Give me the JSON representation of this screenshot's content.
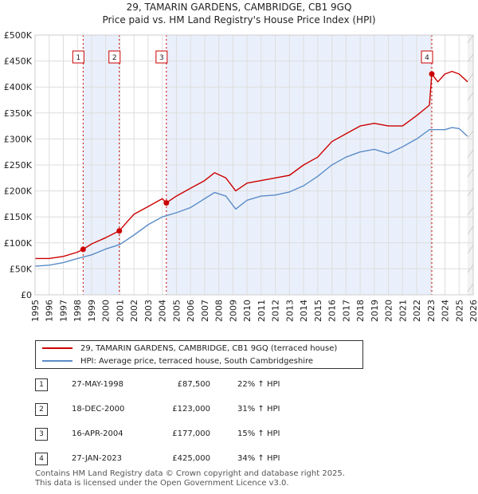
{
  "title_line1": "29, TAMARIN GARDENS, CAMBRIDGE, CB1 9GQ",
  "title_line2": "Price paid vs. HM Land Registry's House Price Index (HPI)",
  "legend": {
    "red_label": "29, TAMARIN GARDENS, CAMBRIDGE, CB1 9GQ (terraced house)",
    "blue_label": "HPI: Average price, terraced house, South Cambridgeshire",
    "red_color": "#cc0000",
    "blue_color": "#5b8cc8"
  },
  "sales": [
    {
      "num": "1",
      "date": "27-MAY-1998",
      "price": "£87,500",
      "hpi": "22% ↑ HPI"
    },
    {
      "num": "2",
      "date": "18-DEC-2000",
      "price": "£123,000",
      "hpi": "31% ↑ HPI"
    },
    {
      "num": "3",
      "date": "16-APR-2004",
      "price": "£177,000",
      "hpi": "15% ↑ HPI"
    },
    {
      "num": "4",
      "date": "27-JAN-2023",
      "price": "£425,000",
      "hpi": "34% ↑ HPI"
    }
  ],
  "footer_line1": "Contains HM Land Registry data © Crown copyright and database right 2025.",
  "footer_line2": "This data is licensed under the Open Government Licence v3.0.",
  "chart_data": {
    "type": "line",
    "title": "29, TAMARIN GARDENS, CAMBRIDGE, CB1 9GQ",
    "subtitle": "Price paid vs. HM Land Registry's House Price Index (HPI)",
    "xlim": [
      1995,
      2026
    ],
    "ylim": [
      0,
      500000
    ],
    "x_ticks": [
      1995,
      1996,
      1997,
      1998,
      1999,
      2000,
      2001,
      2002,
      2003,
      2004,
      2005,
      2006,
      2007,
      2008,
      2009,
      2010,
      2011,
      2012,
      2013,
      2014,
      2015,
      2016,
      2017,
      2018,
      2019,
      2020,
      2021,
      2022,
      2023,
      2024,
      2025,
      2026
    ],
    "y_ticks": [
      0,
      50000,
      100000,
      150000,
      200000,
      250000,
      300000,
      350000,
      400000,
      450000,
      500000
    ],
    "y_tick_labels": [
      "£0",
      "£50K",
      "£100K",
      "£150K",
      "£200K",
      "£250K",
      "£300K",
      "£350K",
      "£400K",
      "£450K",
      "£500K"
    ],
    "grid": true,
    "series": [
      {
        "name": "29, TAMARIN GARDENS, CAMBRIDGE, CB1 9GQ (terraced house)",
        "color": "#cc0000",
        "x": [
          1995,
          1996,
          1997,
          1998,
          1998.4,
          1999,
          2000,
          2000.96,
          2001.5,
          2002,
          2003,
          2004,
          2004.29,
          2005,
          2006,
          2007,
          2007.7,
          2008.5,
          2009.2,
          2010,
          2011,
          2012,
          2013,
          2014,
          2015,
          2016,
          2017,
          2018,
          2019,
          2020,
          2021,
          2022,
          2022.9,
          2023.07,
          2023.5,
          2024,
          2024.5,
          2025,
          2025.6
        ],
        "values": [
          70000,
          70000,
          74000,
          82000,
          87500,
          98000,
          110000,
          123000,
          140000,
          155000,
          170000,
          185000,
          177000,
          190000,
          205000,
          220000,
          235000,
          225000,
          200000,
          215000,
          220000,
          225000,
          230000,
          250000,
          265000,
          295000,
          310000,
          325000,
          330000,
          325000,
          325000,
          345000,
          365000,
          425000,
          410000,
          425000,
          430000,
          425000,
          410000
        ]
      },
      {
        "name": "HPI: Average price, terraced house, South Cambridgeshire",
        "color": "#5b8cc8",
        "x": [
          1995,
          1996,
          1997,
          1998,
          1999,
          2000,
          2001,
          2002,
          2003,
          2004,
          2005,
          2006,
          2007,
          2007.7,
          2008.5,
          2009.2,
          2010,
          2011,
          2012,
          2013,
          2014,
          2015,
          2016,
          2017,
          2018,
          2019,
          2020,
          2021,
          2022,
          2022.9,
          2023.5,
          2024,
          2024.5,
          2025,
          2025.6
        ],
        "values": [
          55000,
          57000,
          62000,
          70000,
          77000,
          88000,
          97000,
          115000,
          135000,
          150000,
          158000,
          168000,
          185000,
          197000,
          190000,
          165000,
          182000,
          190000,
          192000,
          198000,
          210000,
          228000,
          250000,
          265000,
          275000,
          280000,
          272000,
          285000,
          300000,
          318000,
          318000,
          318000,
          322000,
          320000,
          305000
        ]
      }
    ],
    "markers": [
      {
        "label": "1",
        "x": 1998.4,
        "value": 87500
      },
      {
        "label": "2",
        "x": 2000.96,
        "value": 123000
      },
      {
        "label": "3",
        "x": 2004.29,
        "value": 177000
      },
      {
        "label": "4",
        "x": 2023.07,
        "value": 425000
      }
    ],
    "xlabel": "",
    "ylabel": ""
  }
}
